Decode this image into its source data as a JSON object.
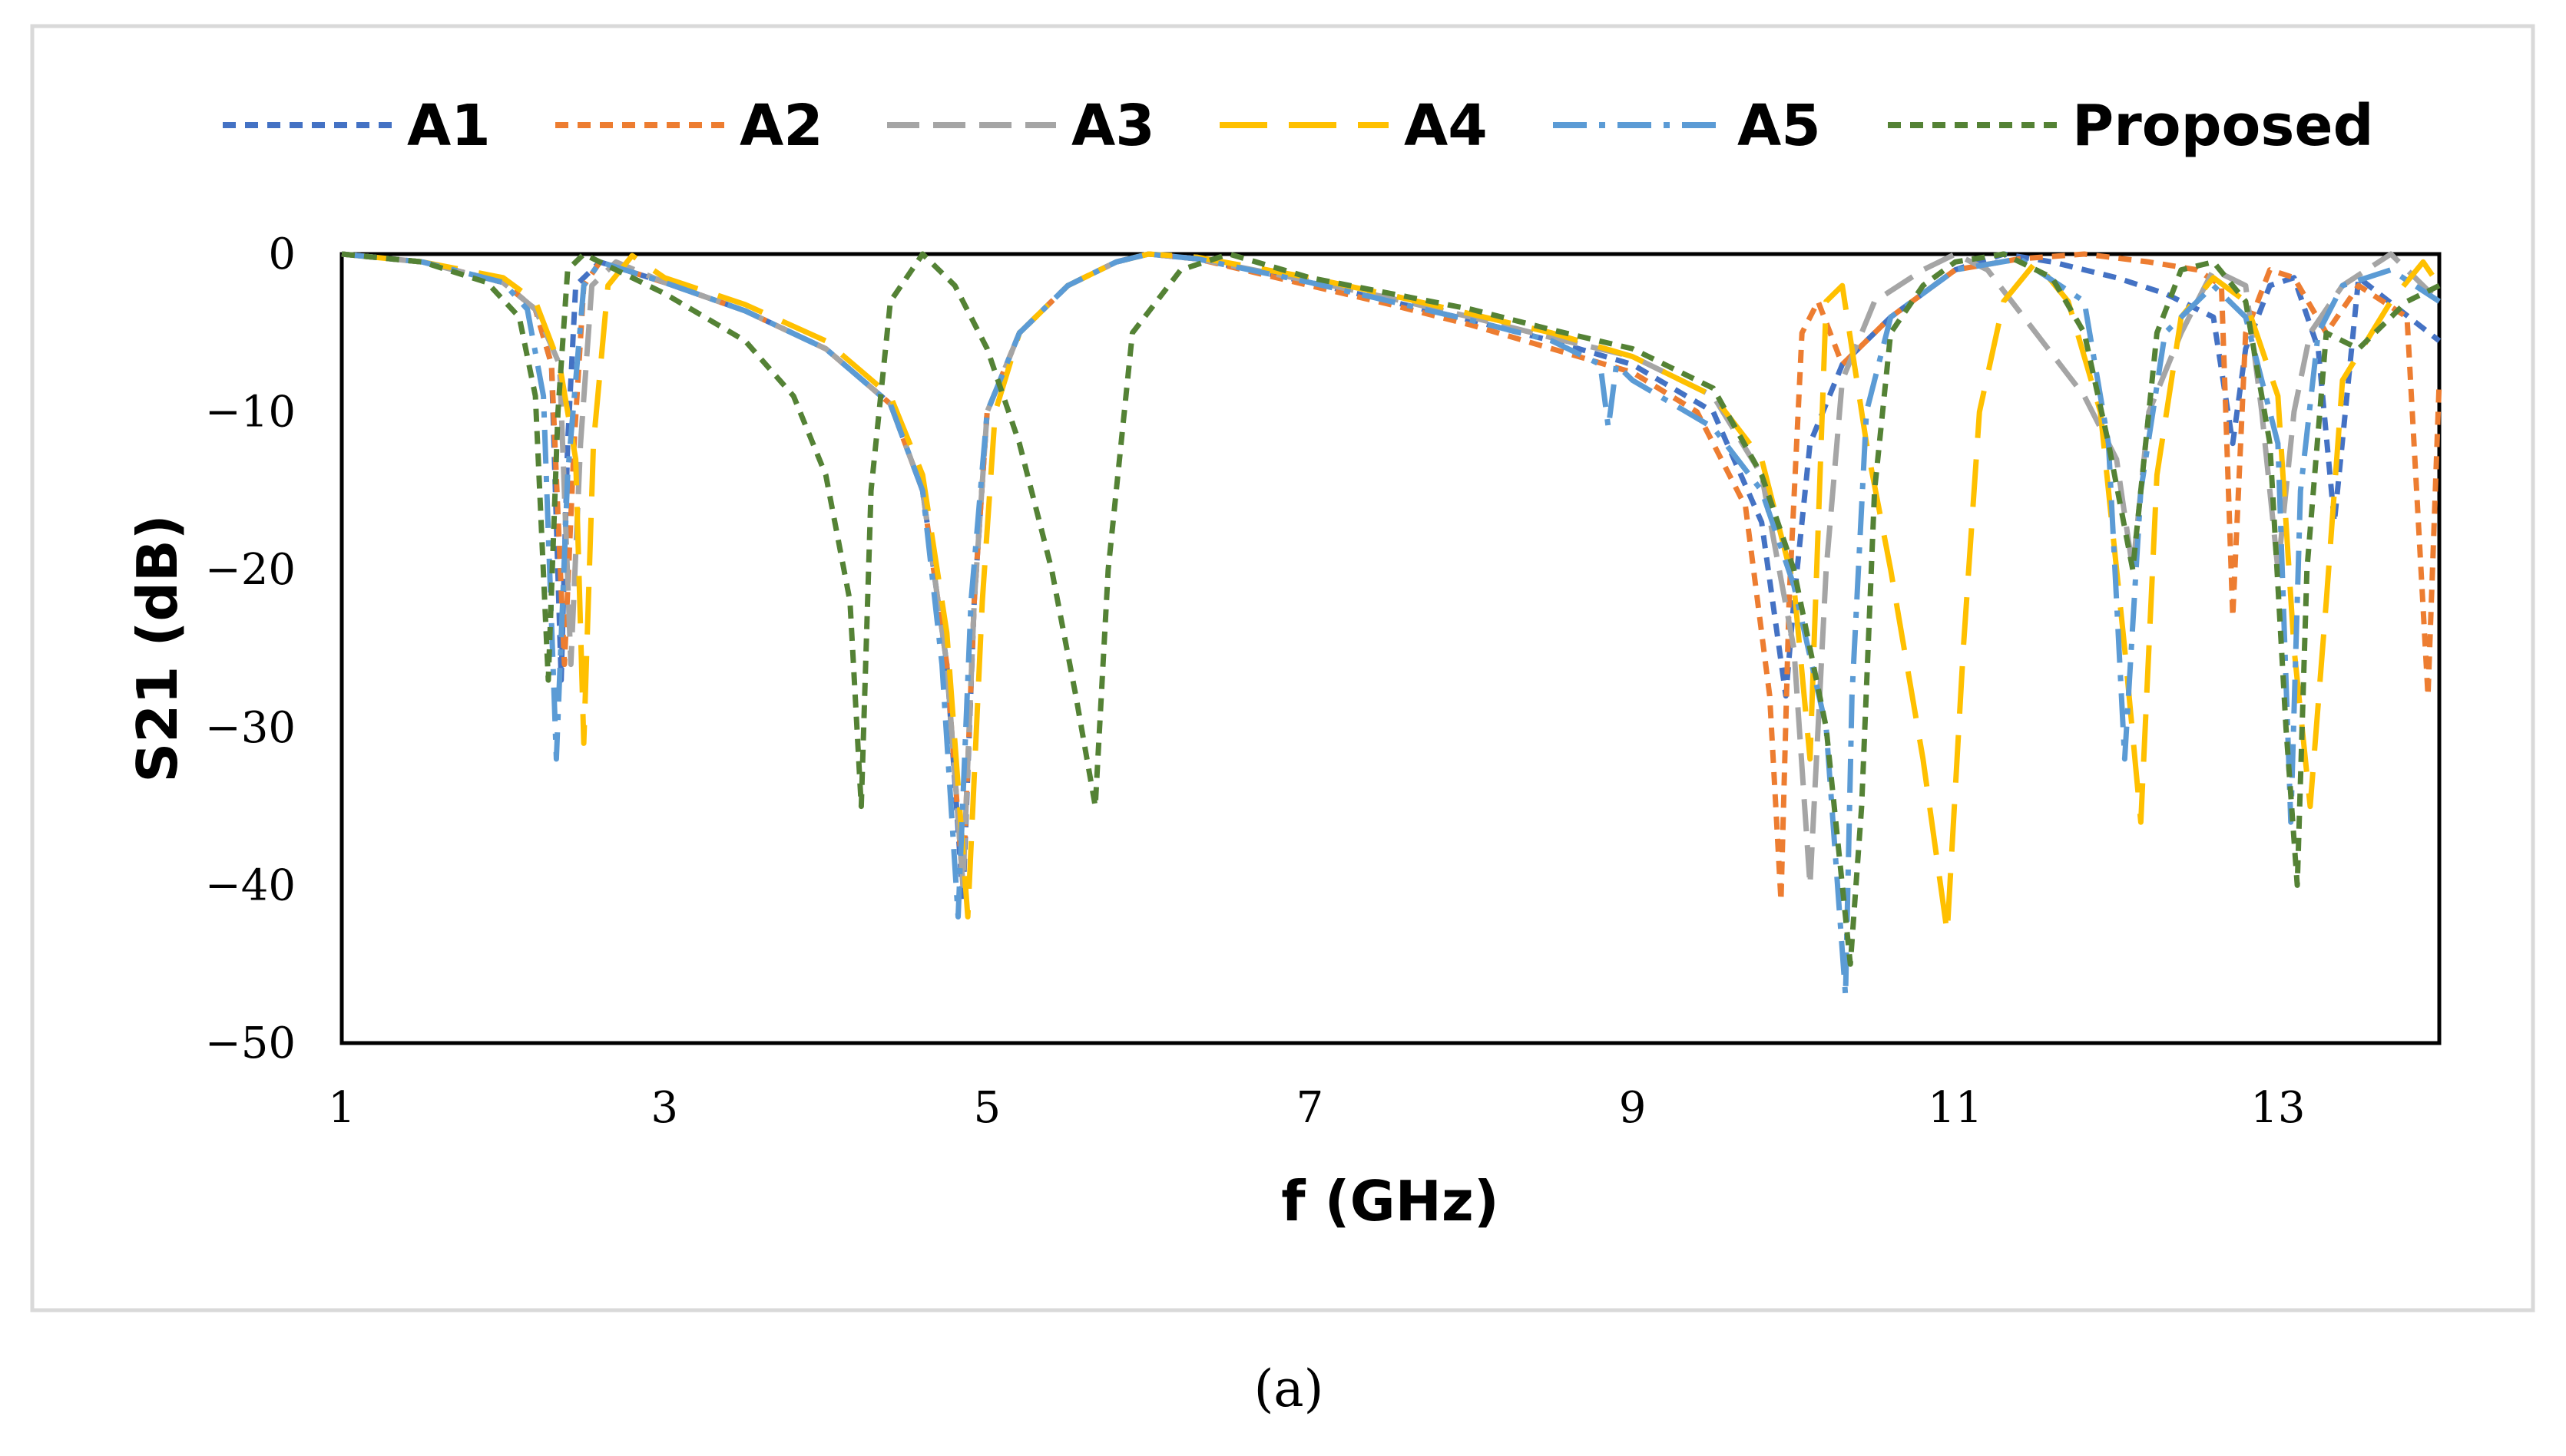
{
  "caption": "(a)",
  "chart_data": {
    "type": "line",
    "xlabel": "f (GHz)",
    "ylabel": "S21 (dB)",
    "xlim": [
      1,
      14
    ],
    "ylim": [
      -50,
      0
    ],
    "x_ticks": [
      1,
      3,
      5,
      7,
      9,
      11,
      13
    ],
    "y_ticks": [
      0,
      -10,
      -20,
      -30,
      -40,
      -50
    ],
    "x_tick_labels": [
      "1",
      "3",
      "5",
      "7",
      "9",
      "11",
      "13"
    ],
    "y_tick_labels": [
      "0",
      "−10",
      "−20",
      "−30",
      "−40",
      "−50"
    ],
    "grid": false,
    "legend_position": "top",
    "series": [
      {
        "name": "A1",
        "color": "#4472C4",
        "dash": "short",
        "x": [
          1,
          1.5,
          2.0,
          2.2,
          2.3,
          2.36,
          2.4,
          2.45,
          2.6,
          3.0,
          3.5,
          4.0,
          4.4,
          4.6,
          4.75,
          4.85,
          4.92,
          5.0,
          5.2,
          5.5,
          5.8,
          6.0,
          6.3,
          7.0,
          7.5,
          8.0,
          8.5,
          9.0,
          9.5,
          9.8,
          9.95,
          10.0,
          10.1,
          10.3,
          10.6,
          11.0,
          11.3,
          11.6,
          12.0,
          12.3,
          12.6,
          12.72,
          12.8,
          12.95,
          13.1,
          13.25,
          13.35,
          13.5,
          14.0
        ],
        "y": [
          0,
          -0.5,
          -1.8,
          -3.5,
          -7,
          -27,
          -12,
          -2,
          -0.5,
          -1.8,
          -3.6,
          -6,
          -9.5,
          -15,
          -26,
          -41,
          -22,
          -10,
          -5,
          -2,
          -0.5,
          0,
          -0.3,
          -1.8,
          -3,
          -4.2,
          -5.5,
          -7,
          -10,
          -17,
          -28,
          -22,
          -12,
          -7,
          -4,
          -1,
          0,
          -0.5,
          -1.5,
          -2.5,
          -4,
          -12,
          -6,
          -2,
          -1.5,
          -6,
          -17,
          -1.5,
          -5.5
        ]
      },
      {
        "name": "A2",
        "color": "#ED7D31",
        "dash": "short",
        "x": [
          1,
          1.5,
          2.0,
          2.2,
          2.3,
          2.38,
          2.44,
          2.5,
          2.6,
          3.0,
          3.5,
          4.0,
          4.4,
          4.6,
          4.75,
          4.85,
          4.92,
          5.0,
          5.2,
          5.5,
          5.8,
          6.0,
          6.3,
          7.0,
          7.5,
          8.0,
          8.5,
          9.0,
          9.4,
          9.7,
          9.85,
          9.92,
          9.97,
          10.05,
          10.15,
          10.3,
          10.6,
          11.0,
          11.4,
          11.8,
          12.2,
          12.5,
          12.65,
          12.72,
          12.8,
          12.95,
          13.1,
          13.3,
          13.5,
          13.8,
          13.93,
          14.0
        ],
        "y": [
          0,
          -0.5,
          -1.8,
          -3.5,
          -7,
          -26,
          -12,
          -2,
          -0.5,
          -1.8,
          -3.6,
          -6,
          -9.5,
          -15,
          -26,
          -40,
          -22,
          -10,
          -5,
          -2,
          -0.5,
          0,
          -0.3,
          -2,
          -3.2,
          -4.5,
          -6,
          -7.5,
          -10,
          -16,
          -28,
          -41,
          -22,
          -5,
          -3,
          -7,
          -4,
          -1,
          -0.3,
          0,
          -0.5,
          -1,
          -2,
          -23,
          -5,
          -1,
          -1.5,
          -5,
          -2,
          -4,
          -28,
          -8
        ]
      },
      {
        "name": "A3",
        "color": "#A5A5A5",
        "dash": "medium",
        "x": [
          1,
          1.5,
          2.0,
          2.2,
          2.35,
          2.42,
          2.48,
          2.55,
          2.7,
          3.0,
          3.5,
          4.0,
          4.4,
          4.6,
          4.75,
          4.85,
          4.92,
          5.0,
          5.2,
          5.5,
          5.8,
          6.0,
          6.3,
          7.0,
          7.5,
          8.0,
          8.5,
          9.0,
          9.5,
          9.8,
          10.0,
          10.1,
          10.2,
          10.3,
          10.5,
          10.8,
          11.0,
          11.2,
          11.5,
          11.8,
          12.0,
          12.1,
          12.2,
          12.4,
          12.6,
          12.8,
          12.9,
          13.0,
          13.1,
          13.2,
          13.4,
          13.7,
          14.0
        ],
        "y": [
          0,
          -0.5,
          -1.8,
          -3.5,
          -7,
          -26,
          -12,
          -2,
          -0.5,
          -1.8,
          -3.6,
          -6,
          -9.5,
          -15,
          -26,
          -40,
          -22,
          -10,
          -5,
          -2,
          -0.5,
          0,
          -0.3,
          -1.7,
          -2.8,
          -4,
          -5.3,
          -6.5,
          -9,
          -14,
          -25,
          -40,
          -20,
          -8,
          -3,
          -1,
          0,
          -1,
          -5,
          -9,
          -13,
          -20,
          -10,
          -5,
          -1,
          -2,
          -10,
          -20,
          -10,
          -5,
          -2,
          0,
          -3
        ]
      },
      {
        "name": "A4",
        "color": "#FFC000",
        "dash": "long",
        "x": [
          1,
          1.5,
          2.0,
          2.2,
          2.35,
          2.45,
          2.5,
          2.56,
          2.65,
          2.8,
          3.0,
          3.5,
          4.0,
          4.4,
          4.6,
          4.75,
          4.88,
          4.97,
          5.05,
          5.2,
          5.5,
          5.8,
          6.0,
          6.3,
          7.0,
          7.5,
          8.0,
          8.5,
          9.0,
          9.5,
          9.8,
          10.0,
          10.1,
          10.2,
          10.3,
          10.45,
          10.6,
          10.8,
          10.95,
          11.05,
          11.15,
          11.3,
          11.5,
          11.7,
          11.9,
          12.05,
          12.15,
          12.25,
          12.4,
          12.6,
          12.8,
          13.0,
          13.1,
          13.2,
          13.3,
          13.4,
          13.7,
          13.9,
          14.0
        ],
        "y": [
          0,
          -0.5,
          -1.5,
          -3,
          -7,
          -13,
          -31,
          -12,
          -2,
          -0.1,
          -1.5,
          -3.2,
          -5.5,
          -9,
          -14,
          -24,
          -42,
          -22,
          -10,
          -5,
          -2,
          -0.5,
          0,
          -0.2,
          -1.5,
          -2.6,
          -3.8,
          -5,
          -6.5,
          -9,
          -13,
          -21,
          -32,
          -3,
          -2,
          -12,
          -20,
          -32,
          -43,
          -25,
          -10,
          -3,
          -0.5,
          -3,
          -10,
          -25,
          -36,
          -14,
          -4,
          -1.5,
          -3,
          -9,
          -25,
          -35,
          -22,
          -8,
          -3,
          -0.5,
          -2
        ]
      },
      {
        "name": "A5",
        "color": "#5B9BD5",
        "dash": "dashdot",
        "x": [
          1,
          1.5,
          2.0,
          2.15,
          2.25,
          2.33,
          2.4,
          2.5,
          2.6,
          3.0,
          3.5,
          4.0,
          4.4,
          4.6,
          4.72,
          4.82,
          4.9,
          5.0,
          5.2,
          5.5,
          5.8,
          6.0,
          6.3,
          7.0,
          7.5,
          8.0,
          8.5,
          8.8,
          8.85,
          8.9,
          9.0,
          9.5,
          9.8,
          10.0,
          10.2,
          10.32,
          10.36,
          10.45,
          10.6,
          11.0,
          11.4,
          11.8,
          11.95,
          12.05,
          12.15,
          12.3,
          12.6,
          12.8,
          13.0,
          13.08,
          13.14,
          13.25,
          13.4,
          13.7,
          14.0
        ],
        "y": [
          0,
          -0.5,
          -1.8,
          -3.5,
          -9,
          -32,
          -14,
          -2,
          -0.5,
          -1.8,
          -3.6,
          -6,
          -9.5,
          -15,
          -26,
          -42,
          -22,
          -10,
          -5,
          -2,
          -0.5,
          0,
          -0.3,
          -1.8,
          -3,
          -4.2,
          -5.5,
          -7,
          -11,
          -7,
          -8,
          -11,
          -15,
          -21,
          -30,
          -47,
          -28,
          -10,
          -4,
          -1,
          -0.3,
          -3,
          -12,
          -32,
          -15,
          -5,
          -2,
          -4,
          -12,
          -36,
          -15,
          -5,
          -2,
          -1,
          -3
        ]
      },
      {
        "name": "Proposed",
        "color": "#548235",
        "dash": "short",
        "x": [
          1,
          1.5,
          1.9,
          2.1,
          2.2,
          2.28,
          2.34,
          2.4,
          2.5,
          2.6,
          3.0,
          3.5,
          3.8,
          4.0,
          4.15,
          4.22,
          4.28,
          4.4,
          4.6,
          4.8,
          5.0,
          5.2,
          5.4,
          5.55,
          5.67,
          5.75,
          5.9,
          6.2,
          6.5,
          7.0,
          7.5,
          8.0,
          8.5,
          9.0,
          9.5,
          9.8,
          10.0,
          10.2,
          10.35,
          10.42,
          10.5,
          10.6,
          10.8,
          11.0,
          11.3,
          11.6,
          11.8,
          11.95,
          12.1,
          12.25,
          12.4,
          12.6,
          12.8,
          12.95,
          13.05,
          13.12,
          13.18,
          13.3,
          13.5,
          13.8,
          14.0
        ],
        "y": [
          0,
          -0.5,
          -1.8,
          -4,
          -9,
          -27,
          -10,
          -1,
          0,
          -0.5,
          -2.5,
          -5.5,
          -9,
          -14,
          -22,
          -35,
          -15,
          -3,
          0,
          -2,
          -6,
          -12,
          -20,
          -28,
          -35,
          -20,
          -5,
          -1,
          0,
          -1.5,
          -2.5,
          -3.5,
          -4.8,
          -6,
          -8.5,
          -14,
          -20,
          -30,
          -45,
          -35,
          -15,
          -5,
          -2,
          -0.5,
          0,
          -1.5,
          -5,
          -12,
          -20,
          -5,
          -1,
          -0.5,
          -3,
          -12,
          -30,
          -40,
          -20,
          -5,
          -6,
          -3,
          -2
        ]
      }
    ]
  }
}
